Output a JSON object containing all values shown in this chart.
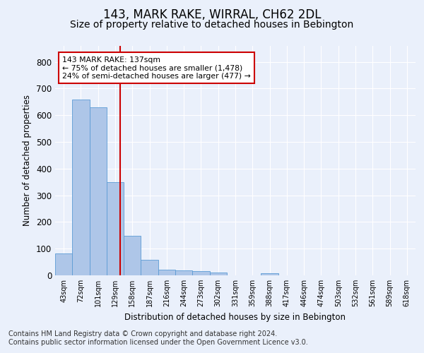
{
  "title1": "143, MARK RAKE, WIRRAL, CH62 2DL",
  "title2": "Size of property relative to detached houses in Bebington",
  "xlabel": "Distribution of detached houses by size in Bebington",
  "ylabel": "Number of detached properties",
  "categories": [
    "43sqm",
    "72sqm",
    "101sqm",
    "129sqm",
    "158sqm",
    "187sqm",
    "216sqm",
    "244sqm",
    "273sqm",
    "302sqm",
    "331sqm",
    "359sqm",
    "388sqm",
    "417sqm",
    "446sqm",
    "474sqm",
    "503sqm",
    "532sqm",
    "561sqm",
    "589sqm",
    "618sqm"
  ],
  "values": [
    83,
    660,
    630,
    350,
    148,
    58,
    22,
    19,
    15,
    10,
    0,
    0,
    8,
    0,
    0,
    0,
    0,
    0,
    0,
    0,
    0
  ],
  "bar_color": "#aec6e8",
  "bar_edge_color": "#5b9bd5",
  "vline_color": "#cc0000",
  "annotation_text": "143 MARK RAKE: 137sqm\n← 75% of detached houses are smaller (1,478)\n24% of semi-detached houses are larger (477) →",
  "annotation_box_color": "#ffffff",
  "annotation_box_edge": "#cc0000",
  "ylim": [
    0,
    860
  ],
  "yticks": [
    0,
    100,
    200,
    300,
    400,
    500,
    600,
    700,
    800
  ],
  "footer1": "Contains HM Land Registry data © Crown copyright and database right 2024.",
  "footer2": "Contains public sector information licensed under the Open Government Licence v3.0.",
  "bg_color": "#eaf0fb",
  "plot_bg_color": "#eaf0fb",
  "grid_color": "#ffffff",
  "title1_fontsize": 12,
  "title2_fontsize": 10,
  "footer_fontsize": 7.0,
  "vline_pos": 3.27
}
